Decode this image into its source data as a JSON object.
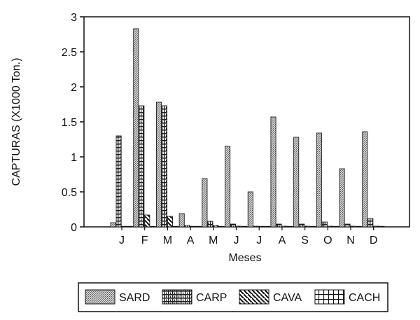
{
  "chart_data": {
    "type": "bar",
    "xlabel": "Meses",
    "ylabel": "CAPTURAS (X1000 Ton.)",
    "categories": [
      "J",
      "F",
      "M",
      "A",
      "M",
      "J",
      "J",
      "A",
      "S",
      "O",
      "N",
      "D"
    ],
    "ylim": [
      0,
      3
    ],
    "yticks": [
      {
        "value": 0,
        "label": "0"
      },
      {
        "value": 0.5,
        "label": "0.5"
      },
      {
        "value": 1,
        "label": "1"
      },
      {
        "value": 1.5,
        "label": "1.5"
      },
      {
        "value": 2,
        "label": "2"
      },
      {
        "value": 2.5,
        "label": "2.5"
      },
      {
        "value": 3,
        "label": "3"
      }
    ],
    "grid": false,
    "legend_position": "bottom",
    "series": [
      {
        "name": "SARD",
        "pattern": "stipple",
        "values": [
          0.06,
          2.83,
          1.78,
          0.19,
          0.69,
          1.15,
          0.5,
          1.57,
          1.28,
          1.34,
          0.83,
          1.36
        ]
      },
      {
        "name": "CARP",
        "pattern": "brick",
        "values": [
          1.3,
          1.73,
          1.73,
          0.02,
          0.08,
          0.04,
          0.01,
          0.04,
          0.04,
          0.07,
          0.04,
          0.12
        ]
      },
      {
        "name": "CAVA",
        "pattern": "diagonal",
        "values": [
          0.0,
          0.17,
          0.15,
          0.0,
          0.02,
          0.01,
          0.0,
          0.01,
          0.01,
          0.01,
          0.01,
          0.01
        ]
      },
      {
        "name": "CACH",
        "pattern": "grid",
        "values": [
          0.0,
          0.0,
          0.0,
          0.0,
          0.0,
          0.0,
          0.0,
          0.0,
          0.0,
          0.0,
          0.0,
          0.0
        ]
      }
    ]
  }
}
